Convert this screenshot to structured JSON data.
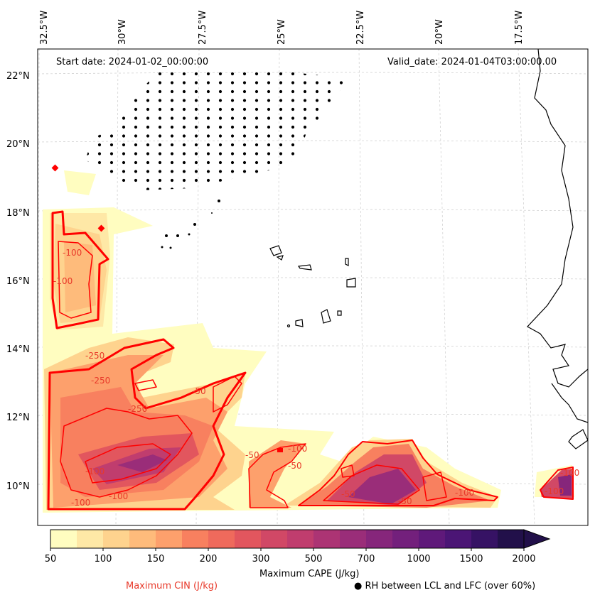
{
  "header": {
    "start_date": "Start date: 2024-01-02_00:00:00",
    "valid_date": "Valid_date: 2024-01-04T03:00:00.00"
  },
  "axes": {
    "lon_labels": [
      "32.5°W",
      "30°W",
      "27.5°W",
      "25°W",
      "22.5°W",
      "20°W",
      "17.5°W"
    ],
    "lat_labels": [
      "22°N",
      "20°N",
      "18°N",
      "16°N",
      "14°N",
      "12°N",
      "10°N"
    ]
  },
  "colorbar": {
    "label": "Maximum CAPE (J/kg)",
    "ticks": [
      "50",
      "100",
      "150",
      "200",
      "300",
      "500",
      "700",
      "1000",
      "1500",
      "2000"
    ],
    "colors": [
      "#fffdc0",
      "#fee8a6",
      "#fed38e",
      "#febb7b",
      "#fda06c",
      "#f8805f",
      "#ef6a5c",
      "#e2565e",
      "#d14866",
      "#c03d6e",
      "#ac3474",
      "#9a2d79",
      "#86267b",
      "#73207c",
      "#5f197a",
      "#4b1575",
      "#361264",
      "#22104a"
    ]
  },
  "legend": {
    "cin": "Maximum CIN (J/kg)",
    "rh": "RH between LCL and LFC (over 60%)",
    "rh_marker": "●"
  },
  "contour_labels": [
    "-100",
    "-100",
    "-250",
    "-250",
    "-250",
    "-50",
    "-100",
    "-100",
    "-50",
    "-50",
    "-100",
    "-100",
    "-50",
    "-50",
    "-100",
    "-100",
    "-100"
  ],
  "colors": {
    "cin": "#ff0000",
    "cin_text": "#e8392a",
    "coast": "#000000",
    "grid": "#cccccc"
  }
}
